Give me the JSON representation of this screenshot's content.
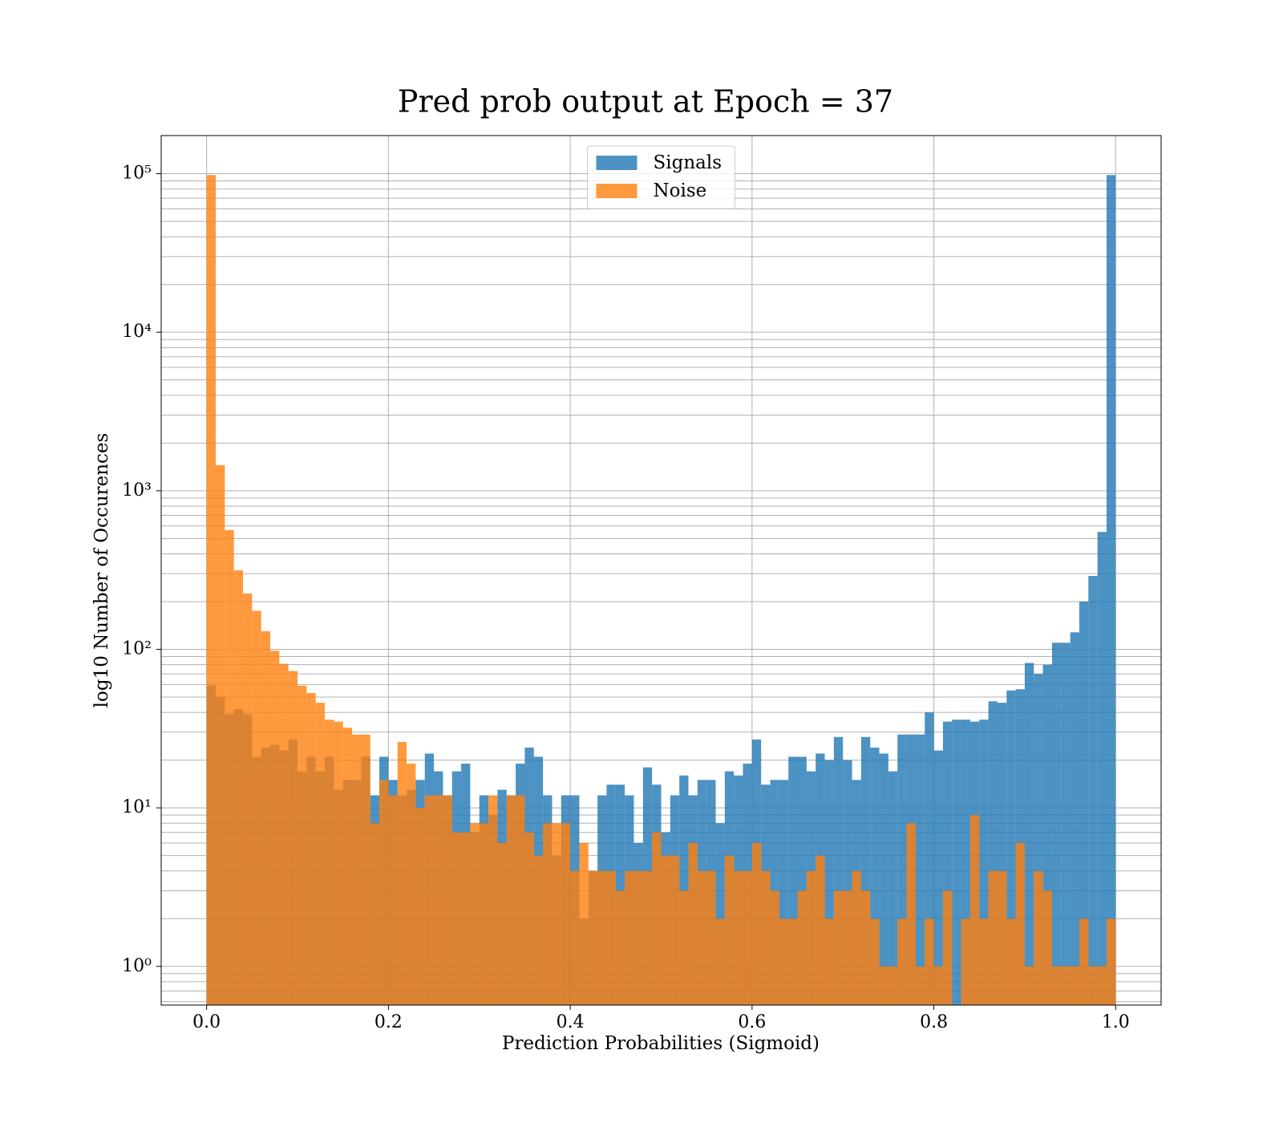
{
  "chart_data": {
    "type": "histogram",
    "title": "Pred prob output at Epoch = 37",
    "xlabel": "Prediction Probabilities (Sigmoid)",
    "ylabel": "log10 Number of Occurences",
    "log_y": true,
    "grid": true,
    "legend_position": "upper center",
    "xlim": [
      -0.05,
      1.05
    ],
    "ylim": [
      0.57,
      174000
    ],
    "xticks": [
      {
        "value": 0,
        "label": "0.0"
      },
      0.2,
      0.4,
      0.6,
      0.8,
      {
        "value": 1,
        "label": "1.0"
      }
    ],
    "yticks": [
      {
        "value": 1,
        "label": "10⁰"
      },
      {
        "value": 10,
        "label": "10¹"
      },
      {
        "value": 100,
        "label": "10²"
      },
      {
        "value": 1000,
        "label": "10³"
      },
      {
        "value": 10000,
        "label": "10⁴"
      },
      {
        "value": 100000,
        "label": "10⁵"
      }
    ],
    "bins": [
      0,
      0.01,
      0.02,
      0.03,
      0.04,
      0.05,
      0.06,
      0.07,
      0.08,
      0.09,
      0.1,
      0.11,
      0.12,
      0.13,
      0.14,
      0.15,
      0.16,
      0.17,
      0.18,
      0.19,
      0.2,
      0.21,
      0.22,
      0.23,
      0.24,
      0.25,
      0.26,
      0.27,
      0.28,
      0.29,
      0.3,
      0.31,
      0.32,
      0.33,
      0.34,
      0.35,
      0.36,
      0.37,
      0.38,
      0.39,
      0.4,
      0.41,
      0.42,
      0.43,
      0.44,
      0.45,
      0.46,
      0.47,
      0.48,
      0.49,
      0.5,
      0.51,
      0.52,
      0.53,
      0.54,
      0.55,
      0.56,
      0.57,
      0.58,
      0.59,
      0.6,
      0.61,
      0.62,
      0.63,
      0.64,
      0.65,
      0.66,
      0.67,
      0.68,
      0.69,
      0.7,
      0.71,
      0.72,
      0.73,
      0.74,
      0.75,
      0.76,
      0.77,
      0.78,
      0.79,
      0.8,
      0.81,
      0.82,
      0.83,
      0.84,
      0.85,
      0.86,
      0.87,
      0.88,
      0.89,
      0.9,
      0.91,
      0.92,
      0.93,
      0.94,
      0.95,
      0.96,
      0.97,
      0.98,
      0.99,
      1
    ],
    "series": [
      {
        "name": "Signals",
        "color": "#1f77b4",
        "values": [
          59,
          50,
          39,
          42,
          39,
          21,
          24,
          25,
          23,
          27,
          17,
          21,
          17,
          21,
          13,
          15,
          15,
          21,
          12,
          21,
          15,
          12,
          13,
          15,
          22,
          17,
          12,
          17,
          19,
          7,
          12,
          9,
          13,
          12,
          19,
          24,
          21,
          12,
          5,
          12,
          12,
          2,
          4,
          12,
          14,
          14,
          12,
          6,
          18,
          14,
          7,
          12,
          16,
          12,
          15,
          15,
          8,
          17,
          16,
          19,
          27,
          14,
          15,
          15,
          21,
          21,
          17,
          22,
          20,
          28,
          20,
          15,
          28,
          24,
          22,
          17,
          29,
          29,
          29,
          40,
          23,
          35,
          36,
          36,
          35,
          36,
          47,
          46,
          55,
          56,
          82,
          70,
          80,
          110,
          110,
          128,
          200,
          290,
          550,
          98000
        ]
      },
      {
        "name": "Noise",
        "color": "#ff7f0e",
        "values": [
          98000,
          1450,
          565,
          315,
          225,
          175,
          130,
          98,
          81,
          73,
          59,
          53,
          46,
          36,
          35,
          32,
          29,
          29,
          8,
          15,
          12,
          26,
          19,
          10,
          12,
          12,
          12,
          7,
          7,
          8,
          8,
          12,
          6,
          12,
          12,
          7,
          5,
          8,
          8,
          8,
          4,
          6,
          4,
          4,
          4,
          3,
          4,
          4,
          4,
          7,
          5,
          5,
          3,
          6,
          4,
          4,
          2,
          5,
          4,
          4,
          6,
          4,
          3,
          2,
          2,
          3,
          4,
          5,
          2,
          3,
          3,
          4,
          3,
          2,
          1,
          1,
          2,
          8,
          1,
          2,
          1,
          3,
          0,
          2,
          9,
          2,
          4,
          4,
          2,
          6,
          1,
          4,
          3,
          1,
          1,
          1,
          2,
          1,
          1,
          2
        ]
      }
    ]
  }
}
